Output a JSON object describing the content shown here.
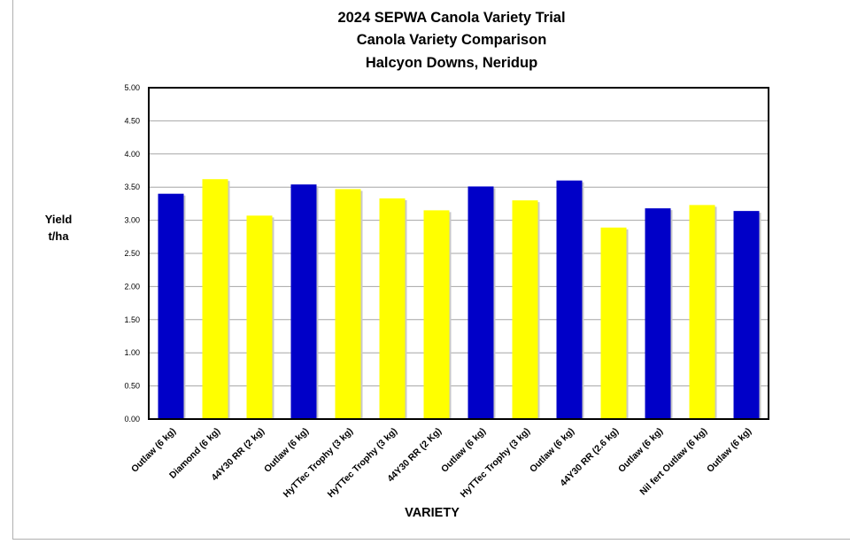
{
  "chart_data": {
    "type": "bar",
    "title": [
      "2024 SEPWA Canola Variety Trial",
      "Canola Variety Comparison",
      "Halcyon Downs, Neridup"
    ],
    "xlabel": "VARIETY",
    "ylabel": [
      "Yield",
      "t/ha"
    ],
    "ylim": [
      0,
      5
    ],
    "yticks": [
      "0.00",
      "0.50",
      "1.00",
      "1.50",
      "2.00",
      "2.50",
      "3.00",
      "3.50",
      "4.00",
      "4.50",
      "5.00"
    ],
    "grid": true,
    "categories": [
      "Outlaw (6 kg)",
      "Diamond (6 kg)",
      "44Y30 RR (2 kg)",
      "Outlaw (6 kg)",
      "HyTTec Trophy (3 kg)",
      "HyTTec Trophy (3 kg)",
      "44Y30 RR (2 Kg)",
      "Outlaw (6 kg)",
      "HyTTec Trophy (3 kg)",
      "Outlaw (6 kg)",
      "44Y30 RR (2.6 kg)",
      "Outlaw (6 kg)",
      "Nil fert Outlaw (6 kg)",
      "Outlaw (6 kg)"
    ],
    "values": [
      3.4,
      3.62,
      3.07,
      3.54,
      3.47,
      3.33,
      3.15,
      3.51,
      3.3,
      3.6,
      2.89,
      3.18,
      3.23,
      3.14
    ],
    "bar_colors": [
      "#0000c8",
      "#ffff00",
      "#ffff00",
      "#0000c8",
      "#ffff00",
      "#ffff00",
      "#ffff00",
      "#0000c8",
      "#ffff00",
      "#0000c8",
      "#ffff00",
      "#0000c8",
      "#ffff00",
      "#0000c8"
    ]
  }
}
